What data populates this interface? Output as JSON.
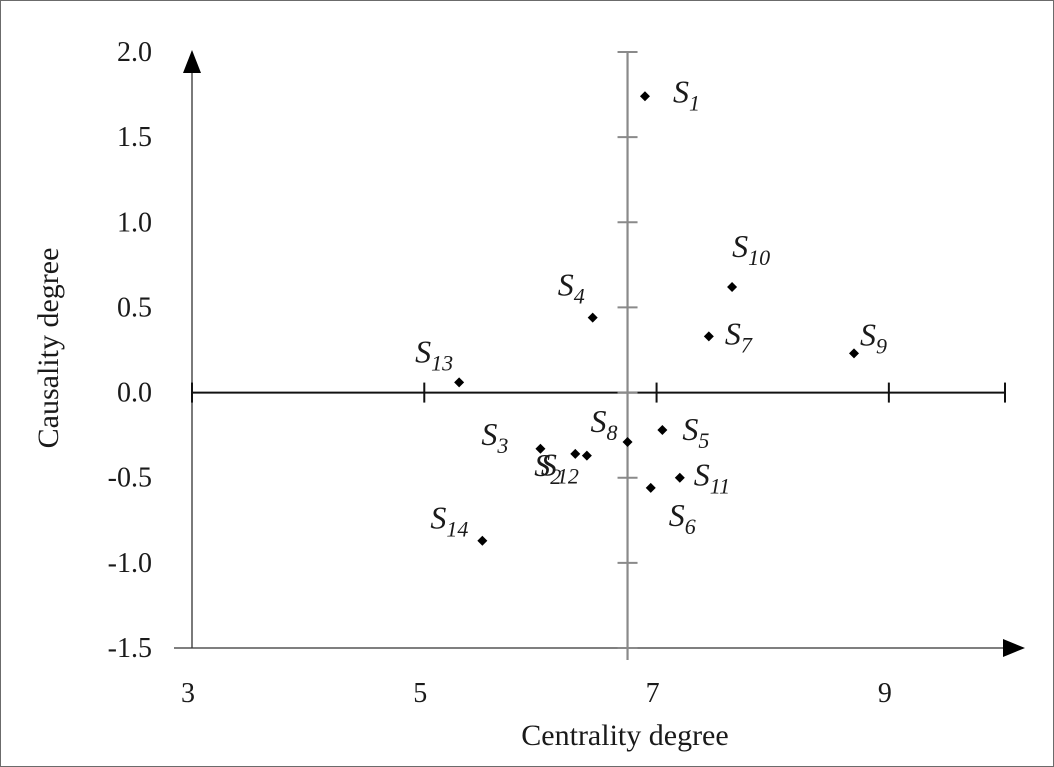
{
  "chart_data": {
    "type": "scatter",
    "xlabel": "Centrality degree",
    "ylabel": "Causality degree",
    "xlim": [
      3,
      10
    ],
    "ylim": [
      -1.5,
      2.0
    ],
    "x_ticks": [
      3,
      5,
      7,
      9
    ],
    "x_tick_labels": [
      "3",
      "5",
      "7",
      "9"
    ],
    "y_ticks": [
      2.0,
      1.5,
      1.0,
      0.5,
      0.0,
      -0.5,
      -1.0,
      -1.5
    ],
    "y_tick_labels": [
      "2.0",
      "1.5",
      "1.0",
      "0.5",
      "0.0",
      "-0.5",
      "-1.0",
      "-1.5"
    ],
    "reference_line_x": 6.75,
    "points": [
      {
        "label": "S",
        "sub": "1",
        "x": 6.9,
        "y": 1.74
      },
      {
        "label": "S",
        "sub": "2",
        "x": 6.3,
        "y": -0.36
      },
      {
        "label": "S",
        "sub": "3",
        "x": 6.0,
        "y": -0.33
      },
      {
        "label": "S",
        "sub": "4",
        "x": 6.45,
        "y": 0.44
      },
      {
        "label": "S",
        "sub": "5",
        "x": 7.05,
        "y": -0.22
      },
      {
        "label": "S",
        "sub": "6",
        "x": 6.95,
        "y": -0.56
      },
      {
        "label": "S",
        "sub": "7",
        "x": 7.45,
        "y": 0.33
      },
      {
        "label": "S",
        "sub": "8",
        "x": 6.75,
        "y": -0.29
      },
      {
        "label": "S",
        "sub": "9",
        "x": 8.7,
        "y": 0.23
      },
      {
        "label": "S",
        "sub": "10",
        "x": 7.65,
        "y": 0.62
      },
      {
        "label": "S",
        "sub": "11",
        "x": 7.2,
        "y": -0.5
      },
      {
        "label": "S",
        "sub": "12",
        "x": 6.4,
        "y": -0.37
      },
      {
        "label": "S",
        "sub": "13",
        "x": 5.3,
        "y": 0.06
      },
      {
        "label": "S",
        "sub": "14",
        "x": 5.5,
        "y": -0.87
      }
    ],
    "grid": false,
    "legend": "none"
  }
}
